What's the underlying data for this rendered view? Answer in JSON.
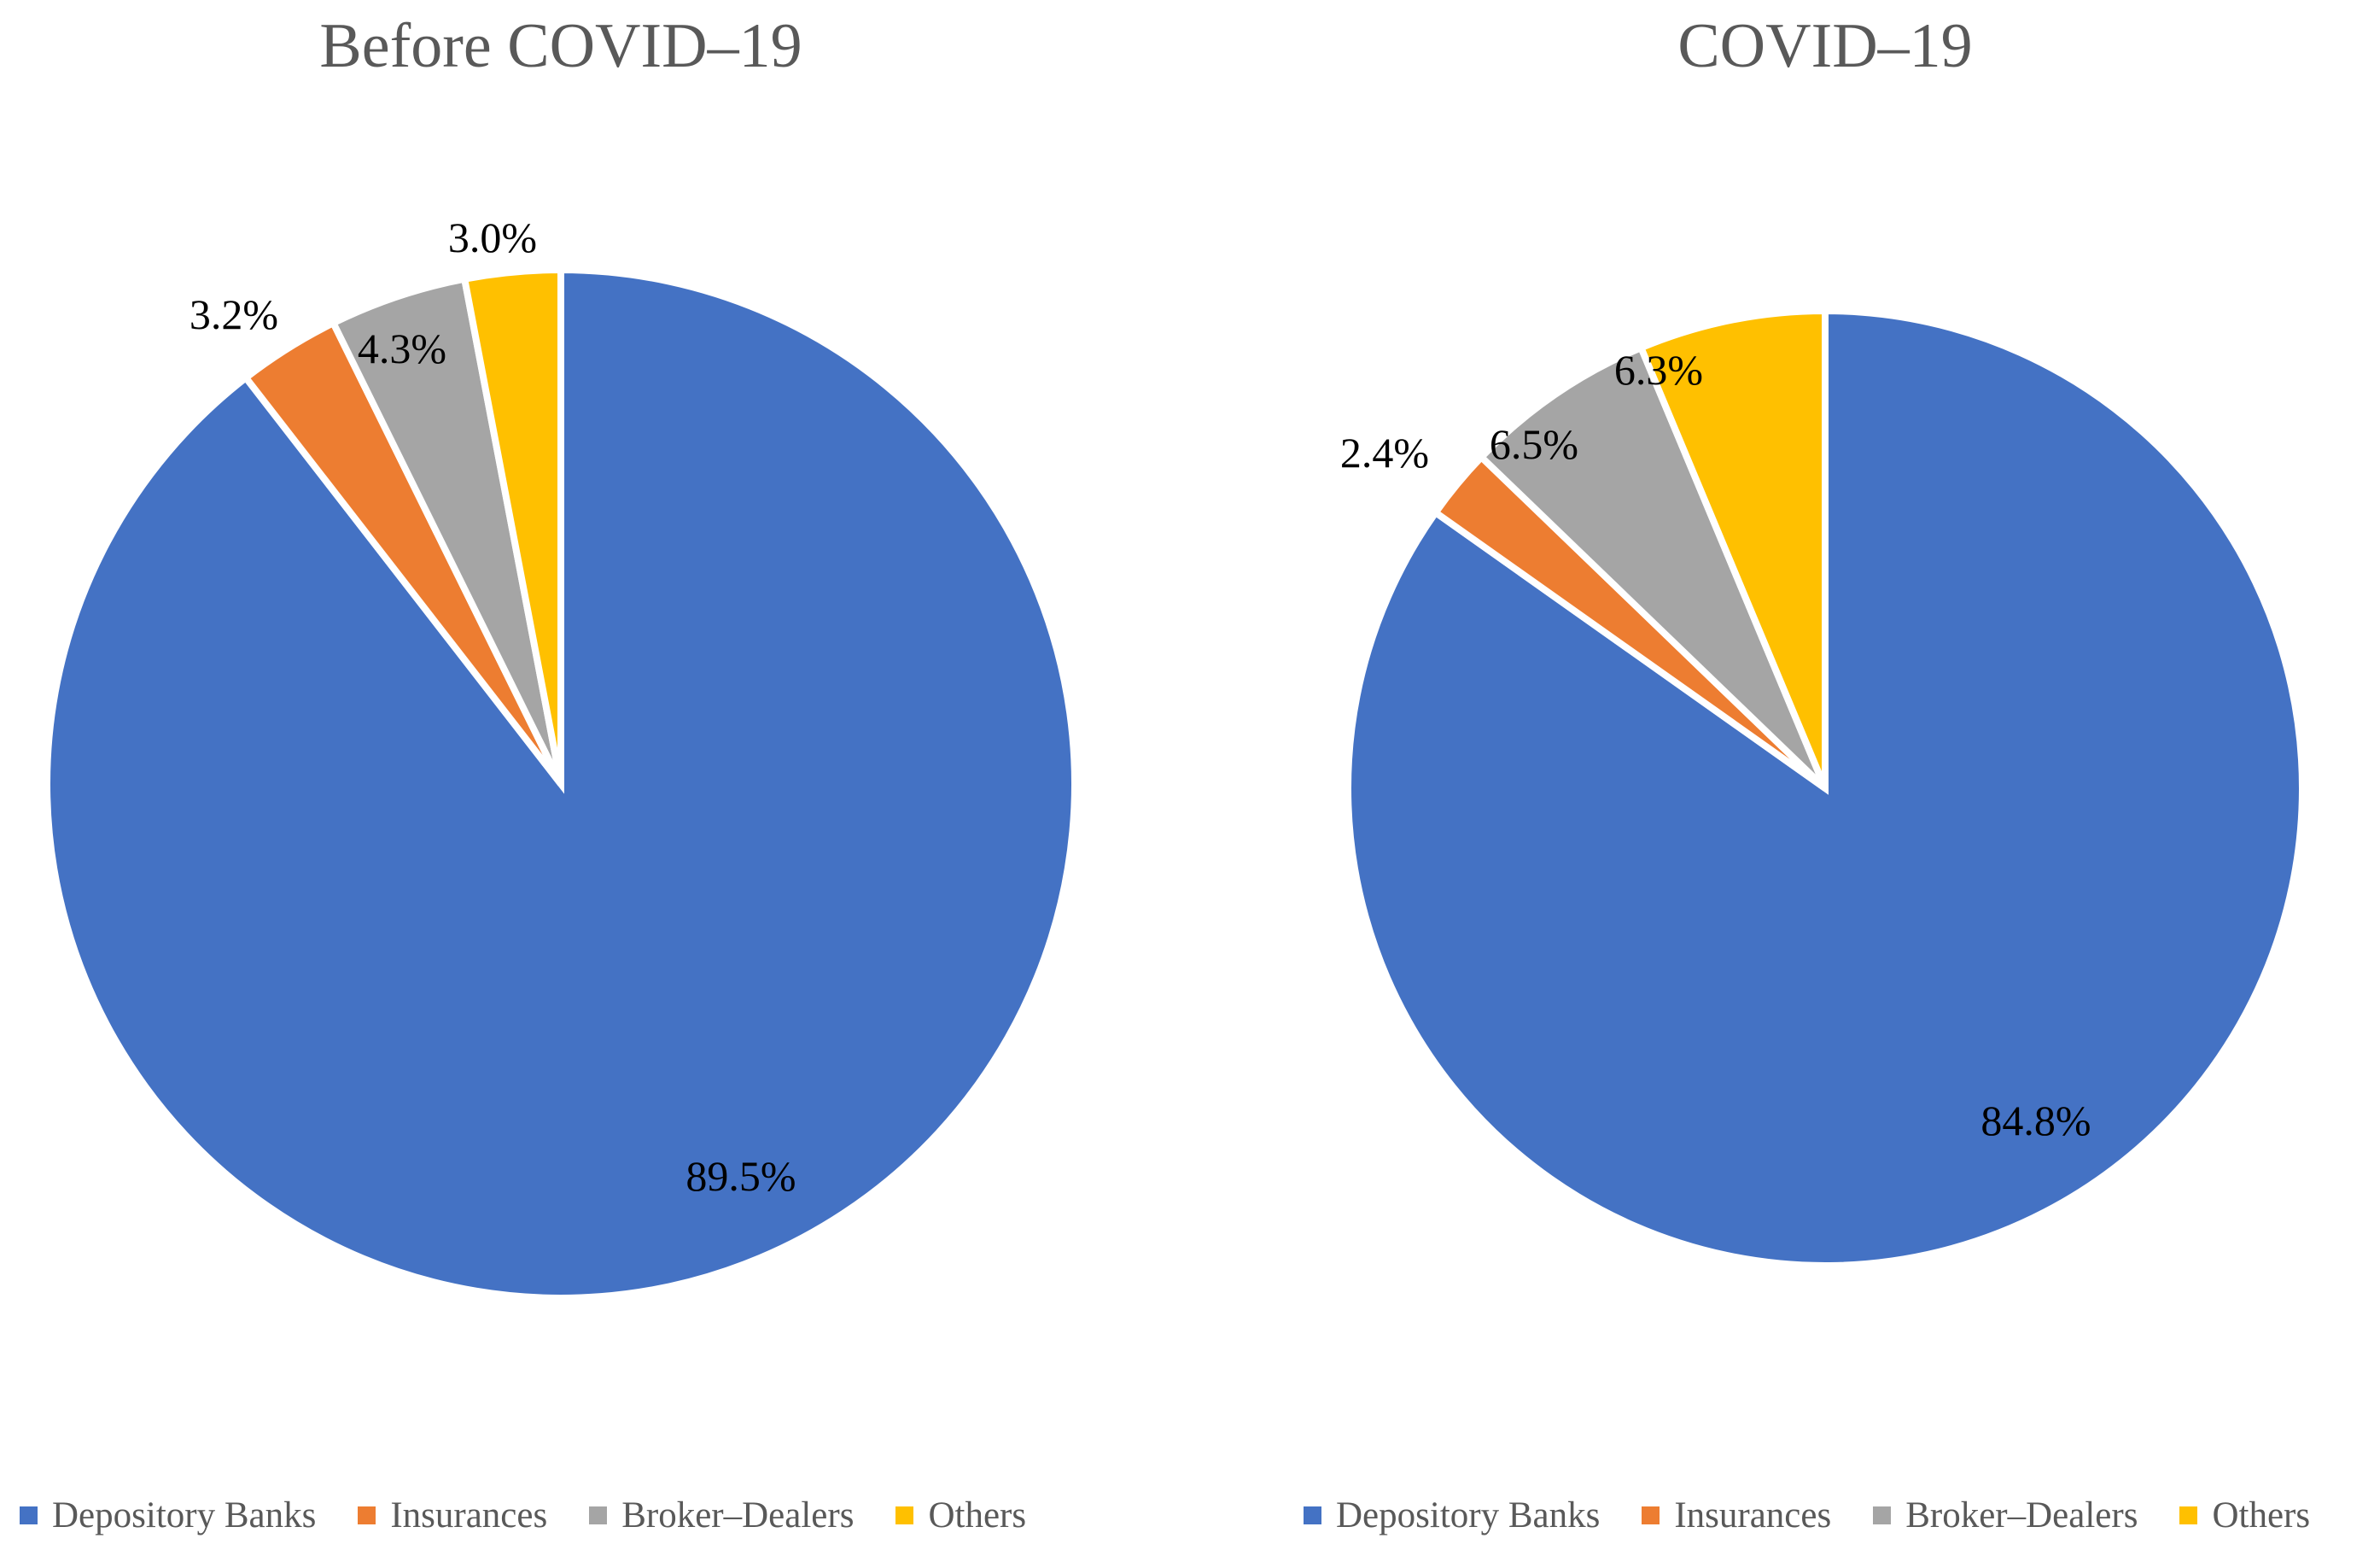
{
  "chart_data": [
    {
      "type": "pie",
      "title": "Before COVID–19",
      "categories": [
        "Depository Banks",
        "Insurances",
        "Broker–Dealers",
        "Others"
      ],
      "values": [
        89.5,
        3.2,
        4.3,
        3.0
      ],
      "labels": [
        "89.5%",
        "3.2%",
        "4.3%",
        "3.0%"
      ],
      "colors": [
        "#4472C4",
        "#ED7D31",
        "#A5A5A5",
        "#FFC000"
      ],
      "slice_border_color": "#FFFFFF",
      "start_angle": 0,
      "direction": "clockwise",
      "legend_position": "bottom",
      "label_placement": [
        "inside",
        "outside",
        "inside",
        "outside"
      ]
    },
    {
      "type": "pie",
      "title": "COVID–19",
      "categories": [
        "Depository Banks",
        "Insurances",
        "Broker–Dealers",
        "Others"
      ],
      "values": [
        84.8,
        2.4,
        6.5,
        6.3
      ],
      "labels": [
        "84.8%",
        "2.4%",
        "6.5%",
        "6.3%"
      ],
      "colors": [
        "#4472C4",
        "#ED7D31",
        "#A5A5A5",
        "#FFC000"
      ],
      "slice_border_color": "#FFFFFF",
      "start_angle": 0,
      "direction": "clockwise",
      "legend_position": "bottom",
      "label_placement": [
        "inside",
        "outside",
        "inside",
        "inside"
      ]
    }
  ],
  "styles": {
    "title_color": "#595959",
    "data_label_color": "#000000",
    "legend_text_color": "#595959",
    "background": "#FFFFFF"
  }
}
